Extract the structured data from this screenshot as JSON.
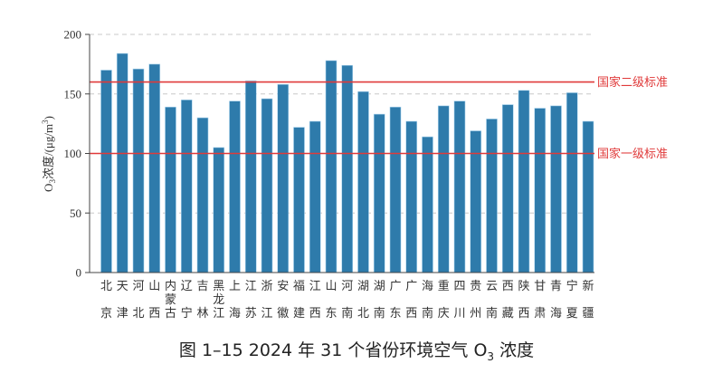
{
  "caption": {
    "prefix": "图 1–15  2024 年 31 个省份环境空气 O",
    "sub": "3",
    "suffix": " 浓度"
  },
  "chart_data": {
    "type": "bar",
    "title": "图 1–15 2024 年 31 个省份环境空气 O3 浓度",
    "xlabel": "",
    "ylabel": "O3浓度/(μg/m3)",
    "ylim": [
      0,
      200
    ],
    "yticks": [
      0,
      50,
      100,
      150,
      200
    ],
    "grid": "horizontal dashed",
    "bar_color": "#2e7bab",
    "categories": [
      "北京",
      "天津",
      "河北",
      "山西",
      "内蒙古",
      "辽宁",
      "吉林",
      "黑龙江",
      "上海",
      "江苏",
      "浙江",
      "安徽",
      "福建",
      "江西",
      "山东",
      "河南",
      "湖北",
      "湖南",
      "广东",
      "广西",
      "海南",
      "重庆",
      "四川",
      "贵州",
      "云南",
      "西藏",
      "陕西",
      "甘肃",
      "青海",
      "宁夏",
      "新疆"
    ],
    "values": [
      170,
      184,
      171,
      175,
      139,
      145,
      130,
      105,
      144,
      161,
      146,
      158,
      122,
      127,
      178,
      174,
      152,
      133,
      139,
      127,
      114,
      140,
      144,
      119,
      129,
      141,
      153,
      138,
      140,
      151,
      127
    ],
    "reference_lines": [
      {
        "label": "国家二级标准",
        "value": 160,
        "color": "#e03a3a"
      },
      {
        "label": "国家一级标准",
        "value": 100,
        "color": "#e03a3a"
      }
    ]
  }
}
